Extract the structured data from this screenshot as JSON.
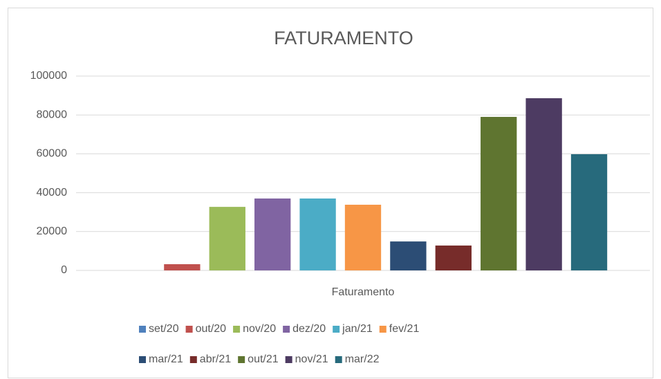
{
  "chart_data": {
    "type": "bar",
    "title": "FATURAMENTO",
    "categories": [
      "Faturamento"
    ],
    "series": [
      {
        "name": "set/20",
        "color": "#4f81bd",
        "values": [
          0
        ]
      },
      {
        "name": "out/20",
        "color": "#c0504d",
        "values": [
          3200
        ]
      },
      {
        "name": "nov/20",
        "color": "#9bbb59",
        "values": [
          32700
        ]
      },
      {
        "name": "dez/20",
        "color": "#8064a2",
        "values": [
          37000
        ]
      },
      {
        "name": "jan/21",
        "color": "#4bacc6",
        "values": [
          37000
        ]
      },
      {
        "name": "fev/21",
        "color": "#f79646",
        "values": [
          33800
        ]
      },
      {
        "name": "mar/21",
        "color": "#2c4d75",
        "values": [
          14900
        ]
      },
      {
        "name": "abr/21",
        "color": "#772c2a",
        "values": [
          12800
        ]
      },
      {
        "name": "out/21",
        "color": "#5f7530",
        "values": [
          79000
        ]
      },
      {
        "name": "nov/21",
        "color": "#4d3b62",
        "values": [
          88600
        ]
      },
      {
        "name": "mar/22",
        "color": "#276a7c",
        "values": [
          59800
        ]
      }
    ],
    "ylim": [
      0,
      100000
    ],
    "yticks": [
      0,
      20000,
      40000,
      60000,
      80000,
      100000
    ],
    "grid": true,
    "legend": "bottom"
  }
}
